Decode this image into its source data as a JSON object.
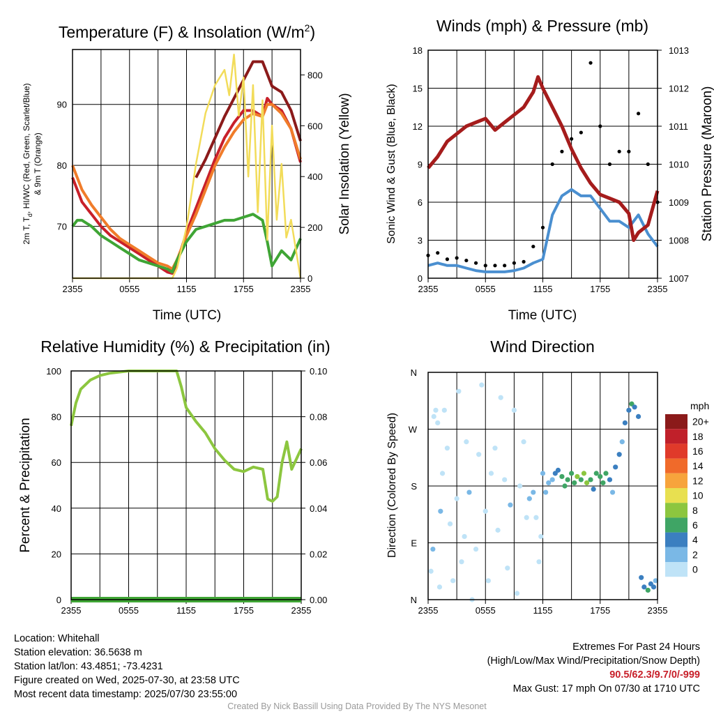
{
  "chart_data": [
    {
      "id": "temperature",
      "type": "line",
      "title": "Temperature (F) & Insolation (W/m",
      "title_sup": "2",
      "title_end": ")",
      "xlabel": "Time (UTC)",
      "ylabel_left_line1": "2m T, T",
      "ylabel_left_sub": "d",
      "ylabel_left_line1_end": ", HI/WC (Red, Green, Scarlet/Blue)",
      "ylabel_left_line2": "& 9m T (Orange)",
      "ylabel_right": "Solar Insolation (Yellow)",
      "x_ticks": [
        "2355",
        "0555",
        "1155",
        "1755",
        "2355"
      ],
      "x_range_hours": [
        0,
        24
      ],
      "ylim_left": [
        61.5,
        99
      ],
      "yticks_left": [
        70,
        80,
        90
      ],
      "ylim_right": [
        0,
        900
      ],
      "yticks_right": [
        0,
        200,
        400,
        600,
        800
      ],
      "grid": true,
      "series": [
        {
          "axis": "left",
          "color": "#c8202a",
          "x": [
            0,
            1,
            2,
            3,
            4,
            5,
            6,
            7,
            8,
            9,
            10,
            10.5,
            11,
            12,
            13,
            14,
            15,
            16,
            17,
            18,
            19,
            20,
            20.5,
            21,
            22,
            23,
            24
          ],
          "values": [
            78,
            74,
            72,
            70,
            68.5,
            67.5,
            66.5,
            65.5,
            64.5,
            63.5,
            62.5,
            62.3,
            64,
            69,
            73,
            77,
            81,
            84.5,
            87,
            89,
            89,
            88,
            91,
            90,
            89,
            86,
            80.5
          ]
        },
        {
          "axis": "left",
          "color": "#f07c2a",
          "x": [
            0,
            1,
            2,
            3,
            4,
            5,
            6,
            7,
            8,
            9,
            10,
            10.5,
            11,
            12,
            13,
            14,
            15,
            16,
            17,
            18,
            19,
            20,
            20.5,
            21,
            22,
            23,
            24
          ],
          "values": [
            80,
            76,
            73.5,
            71.5,
            69.5,
            68,
            67,
            66,
            65,
            64,
            63.5,
            63,
            64.5,
            68.5,
            72,
            76,
            80,
            83,
            85.5,
            87.5,
            88.5,
            88,
            90,
            90,
            88.5,
            86,
            81
          ]
        },
        {
          "axis": "left",
          "color": "#8b1a1a",
          "x": [
            13,
            14,
            15,
            16,
            17,
            18,
            19,
            20,
            21,
            22,
            23,
            24
          ],
          "values": [
            78,
            81,
            84.5,
            88,
            91,
            94,
            97,
            97,
            93,
            92,
            89,
            84
          ]
        },
        {
          "axis": "left",
          "color": "#3fa535",
          "x": [
            0,
            0.5,
            1,
            2,
            3,
            4,
            5,
            6,
            7,
            8,
            9,
            10,
            10.5,
            11,
            12,
            13,
            14,
            15,
            16,
            17,
            18,
            19,
            20,
            20.5,
            21,
            22,
            23,
            24
          ],
          "values": [
            70,
            71,
            71,
            70,
            68.5,
            67.5,
            66.5,
            65.5,
            64.5,
            64,
            63.5,
            63,
            62.5,
            64.5,
            67.5,
            69.5,
            70,
            70.5,
            71,
            71,
            71.5,
            72,
            71,
            67.5,
            63.5,
            66,
            64.5,
            68
          ]
        },
        {
          "axis": "right",
          "color": "#f2dc5a",
          "x": [
            0,
            10.5,
            11,
            12,
            13,
            14,
            15,
            16,
            16.5,
            17,
            17.5,
            18,
            18.5,
            19,
            19.5,
            20,
            20.5,
            21,
            21.5,
            22,
            22.5,
            23,
            24
          ],
          "values": [
            0,
            0,
            40,
            200,
            450,
            650,
            760,
            820,
            720,
            880,
            640,
            790,
            400,
            760,
            260,
            700,
            150,
            600,
            230,
            450,
            160,
            230,
            0
          ]
        }
      ]
    },
    {
      "id": "winds",
      "type": "line",
      "title": "Winds (mph) & Pressure (mb)",
      "xlabel": "Time (UTC)",
      "ylabel_left": "Sonic Wind & Gust (Blue, Black)",
      "ylabel_right": "Station Pressure (Maroon)",
      "x_ticks": [
        "2355",
        "0555",
        "1155",
        "1755",
        "2355"
      ],
      "x_range_hours": [
        0,
        24
      ],
      "ylim_left": [
        0,
        18
      ],
      "yticks_left": [
        0,
        3,
        6,
        9,
        12,
        15,
        18
      ],
      "ylim_right": [
        1007,
        1013
      ],
      "yticks_right": [
        1007,
        1008,
        1009,
        1010,
        1011,
        1012,
        1013
      ],
      "grid": true,
      "series": [
        {
          "name": "Sonic Wind",
          "axis": "left",
          "color": "#4a8fd0",
          "x": [
            0,
            1,
            2,
            3,
            4,
            5,
            6,
            7,
            8,
            9,
            10,
            11,
            12,
            13,
            14,
            15,
            16,
            17,
            18,
            19,
            20,
            21,
            22,
            23,
            24
          ],
          "values": [
            1,
            1.2,
            1,
            1,
            0.8,
            0.6,
            0.5,
            0.5,
            0.5,
            0.6,
            0.8,
            1.2,
            1.5,
            5,
            6.5,
            7,
            6.5,
            6.5,
            5.5,
            4.5,
            4.5,
            4,
            5,
            3.5,
            2.5
          ]
        },
        {
          "name": "Gust",
          "axis": "left",
          "type": "scatter",
          "color": "#000000",
          "x": [
            0,
            1,
            2,
            3,
            4,
            5,
            6,
            7,
            8,
            9,
            10,
            11,
            12,
            13,
            14,
            15,
            16,
            17,
            18,
            19,
            20,
            21,
            22,
            23,
            24
          ],
          "values": [
            1.8,
            2,
            1.5,
            1.6,
            1.4,
            1.2,
            1,
            1,
            1,
            1.2,
            1.3,
            2.5,
            4,
            9,
            10,
            11,
            11.5,
            17,
            12,
            9,
            10,
            10,
            13,
            9,
            6
          ]
        },
        {
          "name": "Station Pressure",
          "axis": "right",
          "color": "#a51c1c",
          "x": [
            0,
            1,
            2,
            3,
            4,
            5,
            6,
            7,
            8,
            9,
            10,
            11,
            11.5,
            12,
            13,
            14,
            15,
            16,
            17,
            18,
            19,
            20,
            21,
            21.5,
            22,
            23,
            24
          ],
          "values": [
            1009.9,
            1010.2,
            1010.6,
            1010.8,
            1011,
            1011.1,
            1011.2,
            1010.9,
            1011.1,
            1011.3,
            1011.5,
            1011.9,
            1012.3,
            1012,
            1011.5,
            1011,
            1010.4,
            1009.9,
            1009.5,
            1009.2,
            1009.1,
            1009,
            1008.7,
            1008,
            1008.2,
            1008.4,
            1009.3
          ]
        }
      ]
    },
    {
      "id": "humidity",
      "type": "line",
      "title": "Relative Humidity (%) & Precipitation (in)",
      "ylabel_left": "Percent & Precipitation",
      "x_ticks": [
        "2355",
        "0555",
        "1155",
        "1755",
        "2355"
      ],
      "x_range_hours": [
        0,
        24
      ],
      "ylim_left": [
        0,
        100
      ],
      "yticks_left": [
        0,
        20,
        40,
        60,
        80,
        100
      ],
      "ylim_right": [
        0,
        0.1
      ],
      "yticks_right": [
        "0.00",
        "0.02",
        "0.04",
        "0.06",
        "0.08",
        "0.10"
      ],
      "grid": true,
      "series": [
        {
          "name": "Relative Humidity",
          "color": "#8cc63f",
          "x": [
            0,
            0.5,
            1,
            2,
            3,
            4,
            5,
            6,
            7,
            8,
            9,
            10,
            11,
            11.5,
            12,
            13,
            14,
            15,
            16,
            17,
            18,
            19,
            20,
            20.5,
            21,
            21.5,
            22,
            22.5,
            23,
            24
          ],
          "values": [
            76,
            86,
            92,
            96,
            98,
            99,
            99.5,
            100,
            100,
            100,
            100,
            100,
            100,
            93,
            84,
            78,
            73,
            66,
            61,
            57,
            56,
            58,
            57,
            44,
            43,
            45,
            60,
            69,
            57,
            66
          ]
        },
        {
          "name": "Precipitation",
          "color": "#3fa535",
          "x": [
            0,
            24
          ],
          "values": [
            0,
            0
          ]
        }
      ]
    },
    {
      "id": "direction",
      "type": "scatter",
      "title": "Wind Direction",
      "ylabel_left": "Direction (Colored By Speed)",
      "x_ticks": [
        "2355",
        "0555",
        "1155",
        "1755",
        "2355"
      ],
      "x_range_hours": [
        0,
        24
      ],
      "y_ticks": [
        "N",
        "E",
        "S",
        "W",
        "N"
      ],
      "ylim_degrees": [
        0,
        360
      ],
      "grid": true,
      "legend_title": "mph",
      "legend_position": "right",
      "legend": [
        {
          "label": "20+",
          "color": "#8b1a1a"
        },
        {
          "label": "18",
          "color": "#c0202a"
        },
        {
          "label": "16",
          "color": "#e03a2a"
        },
        {
          "label": "14",
          "color": "#f06a2a"
        },
        {
          "label": "12",
          "color": "#f7a43c"
        },
        {
          "label": "10",
          "color": "#e8e050"
        },
        {
          "label": "8",
          "color": "#8cc63f"
        },
        {
          "label": "6",
          "color": "#3fa565"
        },
        {
          "label": "4",
          "color": "#3b7fc0"
        },
        {
          "label": "2",
          "color": "#7ab8e6"
        },
        {
          "label": "0",
          "color": "#bfe3f7"
        }
      ],
      "points": [
        [
          0.3,
          45,
          1
        ],
        [
          0.5,
          80,
          2
        ],
        [
          0.6,
          290,
          1
        ],
        [
          0.8,
          300,
          1
        ],
        [
          1,
          280,
          1
        ],
        [
          1.2,
          20,
          1
        ],
        [
          1.3,
          140,
          2
        ],
        [
          1.5,
          200,
          1
        ],
        [
          1.7,
          300,
          1
        ],
        [
          2,
          240,
          1
        ],
        [
          2.3,
          120,
          1
        ],
        [
          2.6,
          30,
          1
        ],
        [
          3,
          160,
          1
        ],
        [
          3.2,
          330,
          1
        ],
        [
          3.5,
          60,
          1
        ],
        [
          3.8,
          100,
          1
        ],
        [
          4,
          250,
          1
        ],
        [
          4.3,
          170,
          2
        ],
        [
          4.6,
          0,
          1
        ],
        [
          5,
          80,
          1
        ],
        [
          5.3,
          230,
          1
        ],
        [
          5.6,
          340,
          1
        ],
        [
          6,
          140,
          1
        ],
        [
          6.3,
          30,
          1
        ],
        [
          6.6,
          200,
          1
        ],
        [
          7,
          240,
          1
        ],
        [
          7.3,
          110,
          1
        ],
        [
          7.6,
          320,
          1
        ],
        [
          8,
          190,
          1
        ],
        [
          8.3,
          50,
          1
        ],
        [
          8.6,
          150,
          2
        ],
        [
          9,
          300,
          1
        ],
        [
          9.3,
          10,
          1
        ],
        [
          9.6,
          180,
          1
        ],
        [
          10,
          250,
          1
        ],
        [
          10.3,
          130,
          1
        ],
        [
          10.6,
          160,
          2
        ],
        [
          11,
          170,
          2
        ],
        [
          11.3,
          130,
          1
        ],
        [
          11.6,
          60,
          1
        ],
        [
          11.8,
          100,
          1
        ],
        [
          12,
          200,
          2
        ],
        [
          12.3,
          170,
          3
        ],
        [
          12.6,
          185,
          3
        ],
        [
          13,
          190,
          3
        ],
        [
          13.3,
          200,
          4
        ],
        [
          13.6,
          205,
          5
        ],
        [
          14,
          195,
          6
        ],
        [
          14.3,
          180,
          7
        ],
        [
          14.6,
          190,
          7
        ],
        [
          15,
          200,
          7
        ],
        [
          15.3,
          185,
          7
        ],
        [
          15.6,
          195,
          8
        ],
        [
          16,
          190,
          7
        ],
        [
          16.3,
          200,
          8
        ],
        [
          16.6,
          185,
          9
        ],
        [
          17,
          190,
          6
        ],
        [
          17.3,
          175,
          4
        ],
        [
          17.6,
          200,
          7
        ],
        [
          18,
          195,
          7
        ],
        [
          18.3,
          185,
          6
        ],
        [
          18.6,
          200,
          7
        ],
        [
          19,
          190,
          5
        ],
        [
          19.3,
          170,
          3
        ],
        [
          19.6,
          210,
          4
        ],
        [
          20,
          230,
          4
        ],
        [
          20.3,
          250,
          3
        ],
        [
          20.6,
          280,
          5
        ],
        [
          21,
          300,
          4
        ],
        [
          21.3,
          310,
          6
        ],
        [
          21.6,
          305,
          4
        ],
        [
          22,
          290,
          4
        ],
        [
          22.3,
          35,
          5
        ],
        [
          22.6,
          20,
          4
        ],
        [
          23,
          15,
          7
        ],
        [
          23.3,
          25,
          4
        ],
        [
          23.6,
          20,
          4
        ],
        [
          23.8,
          30,
          3
        ]
      ]
    }
  ],
  "info": {
    "location": "Location: Whitehall",
    "elevation": "Station elevation: 36.5638 m",
    "latlon": "Station lat/lon: 43.4851; -73.4231",
    "created": "Figure created on Wed, 2025-07-30, at 23:58 UTC",
    "timestamp": "Most recent data timestamp: 2025/07/30 23:55:00"
  },
  "extremes": {
    "title": "Extremes For Past 24 Hours",
    "subtitle": "(High/Low/Max Wind/Precipitation/Snow Depth)",
    "values": "90.5/62.3/9.7/0/-999",
    "gust": "Max Gust: 17 mph On 07/30 at 1710 UTC"
  },
  "credit": "Created By Nick Bassill Using Data Provided By The NYS Mesonet"
}
